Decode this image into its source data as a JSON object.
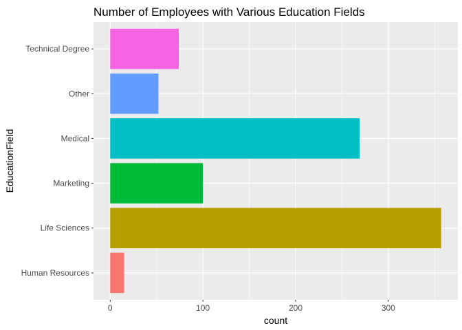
{
  "chart_data": {
    "type": "bar",
    "orientation": "horizontal",
    "title": "Number of Employees with Various Education Fields",
    "xlabel": "count",
    "ylabel": "EducationField",
    "categories": [
      "Human Resources",
      "Life Sciences",
      "Marketing",
      "Medical",
      "Other",
      "Technical Degree"
    ],
    "values": [
      15,
      357,
      100,
      269,
      52,
      74
    ],
    "colors": [
      "#F8766D",
      "#B79F00",
      "#00BA38",
      "#00BFC4",
      "#619CFF",
      "#F564E3"
    ],
    "xlim": [
      -18,
      375
    ],
    "xticks": [
      0,
      100,
      200,
      300
    ],
    "xtick_labels": [
      "0",
      "100",
      "200",
      "300"
    ],
    "grid": true,
    "legend": "none",
    "panel_background": "#EBEBEB",
    "grid_color": "#FFFFFF"
  }
}
